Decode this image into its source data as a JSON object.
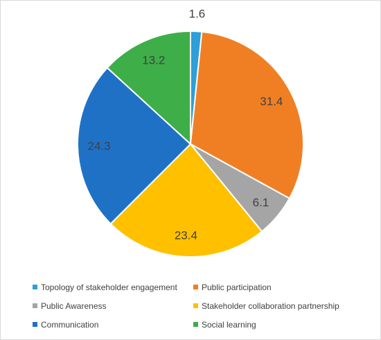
{
  "chart_data": {
    "type": "pie",
    "title": "",
    "start_angle_deg": 0,
    "direction": "clockwise",
    "legend_position": "bottom",
    "slices": [
      {
        "name": "Topology of stakeholder engagement",
        "value": 1.6,
        "label": "1.6",
        "color": "#2e9fd8"
      },
      {
        "name": "Public participation",
        "value": 31.4,
        "label": "31.4",
        "color": "#f07f24"
      },
      {
        "name": "Public Awareness",
        "value": 6.1,
        "label": "6.1",
        "color": "#a5a5a5"
      },
      {
        "name": "Stakeholder collaboration partnership",
        "value": 23.4,
        "label": "23.4",
        "color": "#ffc000"
      },
      {
        "name": "Communication",
        "value": 24.3,
        "label": "24.3",
        "color": "#1f71c6"
      },
      {
        "name": "Social learning",
        "value": 13.2,
        "label": "13.2",
        "color": "#3eae49"
      }
    ]
  }
}
